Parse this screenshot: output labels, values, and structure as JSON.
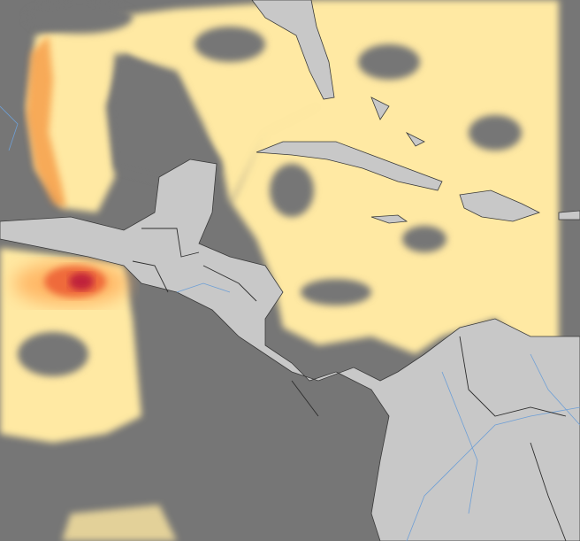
{
  "map": {
    "colors": {
      "ocean_no_data": "#767676",
      "land": "#c8c8c8",
      "borders": "#3a3a3a",
      "rivers": "#6e9fd6",
      "data_low": "#ffe9a3",
      "data_mid": "#ffd27a",
      "data_high": "#f59a45",
      "data_peak": "#e0402a",
      "data_max": "#c0203a"
    }
  }
}
